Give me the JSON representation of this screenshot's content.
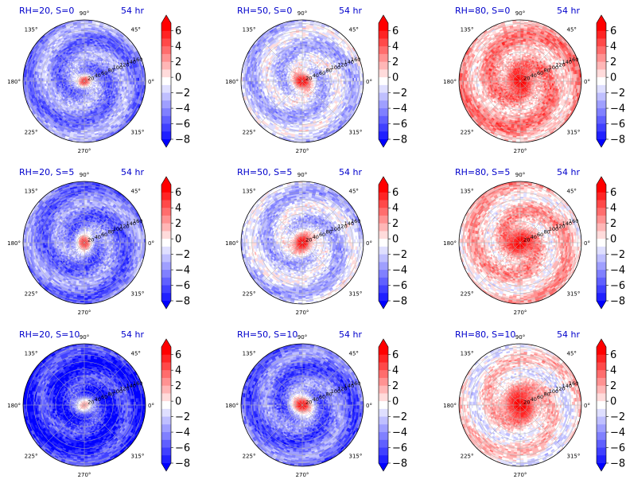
{
  "figure": {
    "colorbar": {
      "ticks": [
        6,
        4,
        2,
        0,
        -2,
        -4,
        -6,
        -8
      ],
      "tick_labels": [
        "6",
        "4",
        "2",
        "0",
        "−2",
        "−4",
        "−6",
        "−8"
      ],
      "vmin": -8,
      "vmax": 7,
      "colormap": "bwr",
      "color_low": "#0000ff",
      "color_mid": "#ffffff",
      "color_high": "#ff0000",
      "extend": "both"
    },
    "angle_labels": [
      "90°",
      "45°",
      "0°",
      "315°",
      "270°",
      "225°",
      "180°",
      "135°"
    ],
    "radial_labels": [
      "20",
      "40",
      "60",
      "80",
      "100",
      "120",
      "140",
      "160"
    ],
    "panels": [
      {
        "title": "RH=20, S=0",
        "time": "54 hr"
      },
      {
        "title": "RH=50, S=0",
        "time": "54 hr"
      },
      {
        "title": "RH=80, S=0",
        "time": "54 hr"
      },
      {
        "title": "RH=20, S=5",
        "time": "54 hr"
      },
      {
        "title": "RH=50, S=5",
        "time": "54 hr"
      },
      {
        "title": "RH=80, S=5",
        "time": "54 hr"
      },
      {
        "title": "RH=20, S=10",
        "time": "54 hr"
      },
      {
        "title": "RH=50, S=10",
        "time": "54 hr"
      },
      {
        "title": "RH=80, S=10",
        "time": "54 hr"
      }
    ]
  },
  "chart_data": {
    "type": "heatmap",
    "subtype": "polar-contourf",
    "rows": [
      "S=0",
      "S=5",
      "S=10"
    ],
    "cols": [
      "RH=20",
      "RH=50",
      "RH=80"
    ],
    "radial_ticks": [
      20,
      40,
      60,
      80,
      100,
      120,
      140,
      160
    ],
    "angle_ticks_deg": [
      0,
      45,
      90,
      135,
      180,
      225,
      270,
      315
    ],
    "value_range": [
      -8,
      7
    ],
    "panels": [
      {
        "title": "RH=20, S=0",
        "time": "54 hr",
        "core_value": 6,
        "core_radius": 15,
        "background_value": -3.5
      },
      {
        "title": "RH=50, S=0",
        "time": "54 hr",
        "core_value": 7,
        "core_radius": 22,
        "background_value": -1.5
      },
      {
        "title": "RH=80, S=0",
        "time": "54 hr",
        "core_value": 7,
        "core_radius": 30,
        "background_value": 2.5
      },
      {
        "title": "RH=20, S=5",
        "time": "54 hr",
        "core_value": 6,
        "core_radius": 20,
        "background_value": -4
      },
      {
        "title": "RH=50, S=5",
        "time": "54 hr",
        "core_value": 7,
        "core_radius": 25,
        "background_value": -1.5
      },
      {
        "title": "RH=80, S=5",
        "time": "54 hr",
        "core_value": 7,
        "core_radius": 35,
        "background_value": 1.5
      },
      {
        "title": "RH=20, S=10",
        "time": "54 hr",
        "core_value": 3,
        "core_radius": 20,
        "background_value": -6.5
      },
      {
        "title": "RH=50, S=10",
        "time": "54 hr",
        "core_value": 7,
        "core_radius": 25,
        "background_value": -4.5
      },
      {
        "title": "RH=80, S=10",
        "time": "54 hr",
        "core_value": 7,
        "core_radius": 45,
        "background_value": 0.5
      }
    ]
  }
}
